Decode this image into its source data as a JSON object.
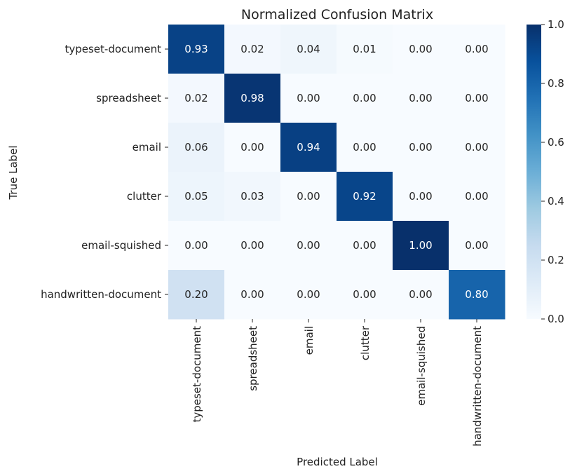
{
  "chart_data": {
    "type": "heatmap",
    "title": "Normalized Confusion Matrix",
    "xlabel": "Predicted Label",
    "ylabel": "True Label",
    "row_labels": [
      "typeset-document",
      "spreadsheet",
      "email",
      "clutter",
      "email-squished",
      "handwritten-document"
    ],
    "col_labels": [
      "typeset-document",
      "spreadsheet",
      "email",
      "clutter",
      "email-squished",
      "handwritten-document"
    ],
    "values": [
      [
        0.93,
        0.02,
        0.04,
        0.01,
        0.0,
        0.0
      ],
      [
        0.02,
        0.98,
        0.0,
        0.0,
        0.0,
        0.0
      ],
      [
        0.06,
        0.0,
        0.94,
        0.0,
        0.0,
        0.0
      ],
      [
        0.05,
        0.03,
        0.0,
        0.92,
        0.0,
        0.0
      ],
      [
        0.0,
        0.0,
        0.0,
        0.0,
        1.0,
        0.0
      ],
      [
        0.2,
        0.0,
        0.0,
        0.0,
        0.0,
        0.8
      ]
    ],
    "value_labels": [
      [
        "0.93",
        "0.02",
        "0.04",
        "0.01",
        "0.00",
        "0.00"
      ],
      [
        "0.02",
        "0.98",
        "0.00",
        "0.00",
        "0.00",
        "0.00"
      ],
      [
        "0.06",
        "0.00",
        "0.94",
        "0.00",
        "0.00",
        "0.00"
      ],
      [
        "0.05",
        "0.03",
        "0.00",
        "0.92",
        "0.00",
        "0.00"
      ],
      [
        "0.00",
        "0.00",
        "0.00",
        "0.00",
        "1.00",
        "0.00"
      ],
      [
        "0.20",
        "0.00",
        "0.00",
        "0.00",
        "0.00",
        "0.80"
      ]
    ],
    "colormap": "Blues",
    "colorbar": {
      "range": [
        0.0,
        1.0
      ],
      "ticks": [
        0.0,
        0.2,
        0.4,
        0.6,
        0.8,
        1.0
      ],
      "tick_labels": [
        "0.0",
        "0.2",
        "0.4",
        "0.6",
        "0.8",
        "1.0"
      ]
    },
    "colors": {
      "low": "#f7fbff",
      "high": "#08306b",
      "text_dark": "#262626",
      "text_light": "#ffffff"
    }
  }
}
